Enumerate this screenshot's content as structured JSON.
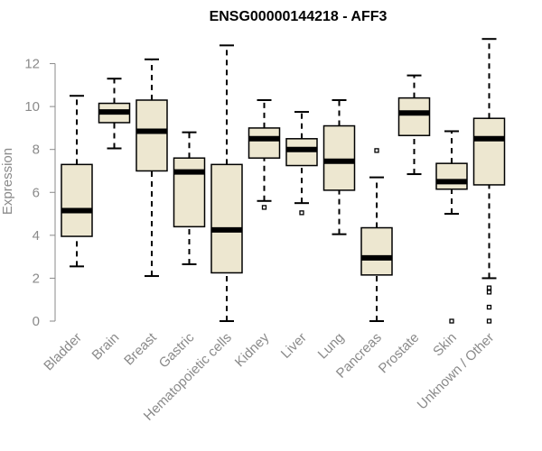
{
  "chart_data": {
    "type": "box",
    "title": "ENSG00000144218 - AFF3",
    "xlabel": "",
    "ylabel": "Expression",
    "ylim": [
      0,
      13.2
    ],
    "yticks": [
      0,
      2,
      4,
      6,
      8,
      10,
      12
    ],
    "grid": false,
    "legend": "none",
    "box_fill": "#ede7d0",
    "categories": [
      "Bladder",
      "Brain",
      "Breast",
      "Gastric",
      "Hematopoietic cells",
      "Kidney",
      "Liver",
      "Lung",
      "Pancreas",
      "Prostate",
      "Skin",
      "Unknown / Other"
    ],
    "boxes": [
      {
        "whisker_low": 2.55,
        "q1": 3.95,
        "median": 5.15,
        "q3": 7.3,
        "whisker_high": 10.5,
        "outliers": []
      },
      {
        "whisker_low": 8.05,
        "q1": 9.25,
        "median": 9.75,
        "q3": 10.15,
        "whisker_high": 11.3,
        "outliers": []
      },
      {
        "whisker_low": 2.1,
        "q1": 7.0,
        "median": 8.85,
        "q3": 10.3,
        "whisker_high": 12.2,
        "outliers": []
      },
      {
        "whisker_low": 2.65,
        "q1": 4.4,
        "median": 6.95,
        "q3": 7.6,
        "whisker_high": 8.8,
        "outliers": []
      },
      {
        "whisker_low": 0.0,
        "q1": 2.25,
        "median": 4.25,
        "q3": 7.3,
        "whisker_high": 12.85,
        "outliers": []
      },
      {
        "whisker_low": 5.6,
        "q1": 7.6,
        "median": 8.5,
        "q3": 9.0,
        "whisker_high": 10.3,
        "outliers": [
          5.3
        ]
      },
      {
        "whisker_low": 5.5,
        "q1": 7.25,
        "median": 8.0,
        "q3": 8.5,
        "whisker_high": 9.75,
        "outliers": [
          5.05
        ]
      },
      {
        "whisker_low": 4.05,
        "q1": 6.1,
        "median": 7.45,
        "q3": 9.1,
        "whisker_high": 10.3,
        "outliers": []
      },
      {
        "whisker_low": 0.0,
        "q1": 2.15,
        "median": 2.95,
        "q3": 4.35,
        "whisker_high": 6.7,
        "outliers": [
          7.95
        ]
      },
      {
        "whisker_low": 6.85,
        "q1": 8.65,
        "median": 9.7,
        "q3": 10.4,
        "whisker_high": 11.45,
        "outliers": []
      },
      {
        "whisker_low": 5.0,
        "q1": 6.15,
        "median": 6.5,
        "q3": 7.35,
        "whisker_high": 8.85,
        "outliers": [
          0.0
        ]
      },
      {
        "whisker_low": 2.0,
        "q1": 6.35,
        "median": 8.5,
        "q3": 9.45,
        "whisker_high": 13.15,
        "outliers": [
          1.55,
          1.35,
          0.65,
          0.0
        ]
      }
    ]
  }
}
